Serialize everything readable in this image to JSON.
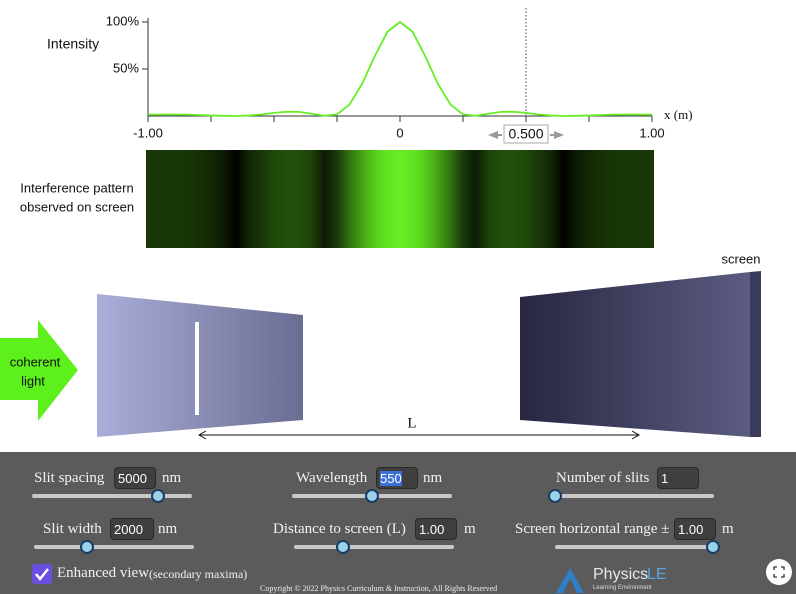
{
  "chart_data": {
    "type": "line",
    "y_label": "Intensity",
    "x_label": "x (m)",
    "x": [
      -1,
      -0.95,
      -0.9,
      -0.85,
      -0.8,
      -0.75,
      -0.7,
      -0.65,
      -0.6,
      -0.55,
      -0.5,
      -0.45,
      -0.4,
      -0.35,
      -0.3,
      -0.25,
      -0.2,
      -0.15,
      -0.1,
      -0.05,
      0,
      0.05,
      0.1,
      0.15,
      0.2,
      0.25,
      0.3,
      0.35,
      0.4,
      0.45,
      0.5,
      0.55,
      0.6,
      0.65,
      0.7,
      0.75,
      0.8,
      0.85,
      0.9,
      0.95,
      1
    ],
    "values": [
      1.5,
      1.6,
      1.6,
      1.5,
      1.1,
      0.6,
      0.2,
      0,
      0.5,
      1.6,
      3.3,
      4.5,
      4.4,
      2.4,
      0.2,
      1.7,
      12.3,
      34.3,
      63.7,
      89.6,
      100,
      89.6,
      63.7,
      34.3,
      12.3,
      1.7,
      0.2,
      2.4,
      4.4,
      4.5,
      3.3,
      1.6,
      0.5,
      0,
      0.2,
      0.6,
      1.1,
      1.5,
      1.6,
      1.6,
      1.5
    ],
    "color": "#66ee22",
    "xlim": [
      -1,
      1
    ],
    "ylim": [
      0,
      100
    ],
    "xticks": [
      {
        "value": -1,
        "label": "-1.00"
      },
      0,
      {
        "value": 1,
        "label": "1.00"
      }
    ],
    "xminorticks": [
      -0.75,
      -0.5,
      -0.25,
      0.25,
      0.5,
      0.75
    ],
    "yticks": [
      {
        "value": 50,
        "label": "50%"
      },
      {
        "value": 100,
        "label": "100%"
      }
    ],
    "marker": {
      "value": 0.5,
      "label": "0.500"
    }
  },
  "pattern_label": [
    "Interference pattern",
    "observed on screen"
  ],
  "scene": {
    "source_label": [
      "coherent",
      "light"
    ],
    "screen_label": "screen",
    "distance_label": "L"
  },
  "controls": {
    "slit_spacing": {
      "label": "Slit spacing",
      "value": "5000",
      "unit": "nm"
    },
    "wavelength": {
      "label": "Wavelength",
      "value": "550",
      "unit": "nm"
    },
    "number_of_slits": {
      "label": "Number of slits",
      "value": "1"
    },
    "slit_width": {
      "label": "Slit width",
      "value": "2000",
      "unit": "nm"
    },
    "distance": {
      "label": "Distance to screen (L)",
      "value": "1.00",
      "unit": "m"
    },
    "range": {
      "label": "Screen horizontal range ±",
      "value": "1.00",
      "unit": "m"
    },
    "enhanced": {
      "label": "Enhanced view",
      "note": "(secondary maxima)"
    }
  },
  "footer": {
    "copyright": "Copyright © 2022 Physics Curriculum & Instruction, All Rights Reserved",
    "logo": {
      "name": "Physics",
      "suffix": "LE",
      "tagline": "Learning Environment"
    }
  }
}
